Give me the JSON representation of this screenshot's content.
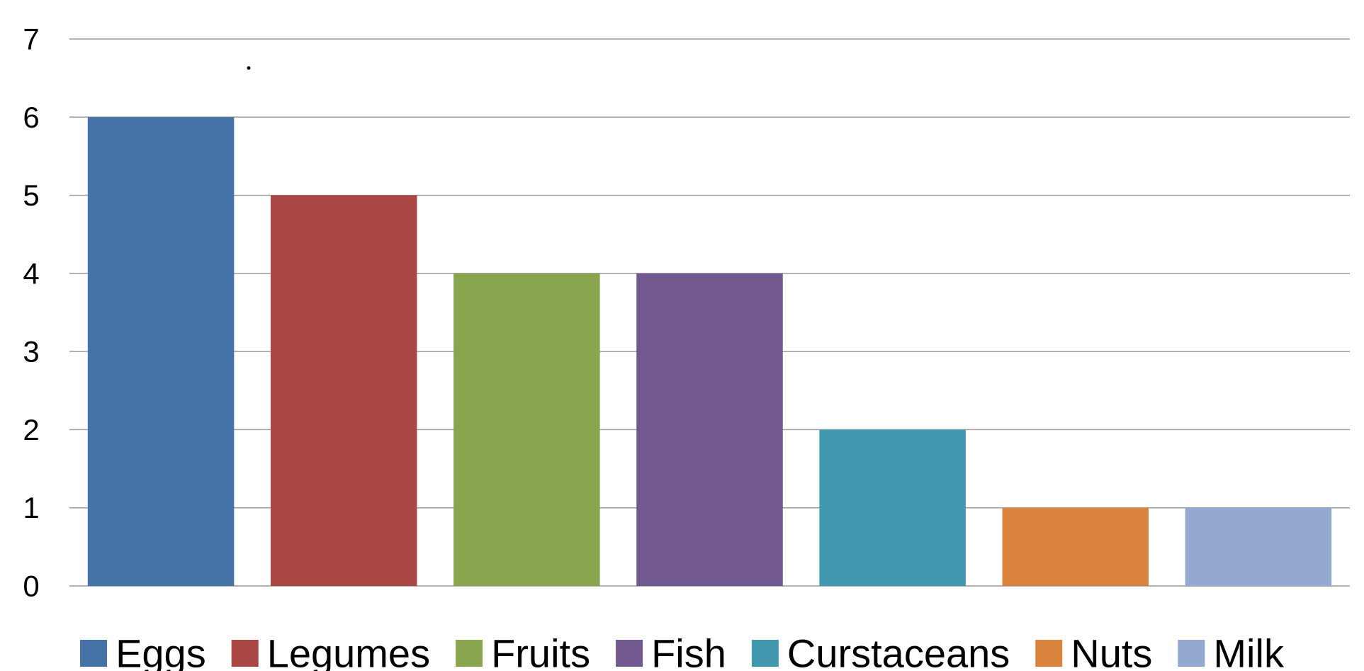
{
  "chart_data": {
    "type": "bar",
    "title": "",
    "xlabel": "",
    "ylabel": "",
    "categories": [
      "Eggs",
      "Legumes",
      "Fruits",
      "Fish",
      "Curstaceans",
      "Nuts",
      "Milk"
    ],
    "values": [
      6,
      5,
      4,
      4,
      2,
      1,
      1
    ],
    "colors": [
      "#4572A7",
      "#AA4643",
      "#89A54E",
      "#71588F",
      "#4198AF",
      "#DB843D",
      "#93A9CF"
    ],
    "ylim": [
      0,
      7
    ],
    "yticks": [
      "0",
      "1",
      "2",
      "3",
      "4",
      "5",
      "6",
      "7"
    ],
    "grid": true,
    "legend": "bottom"
  }
}
